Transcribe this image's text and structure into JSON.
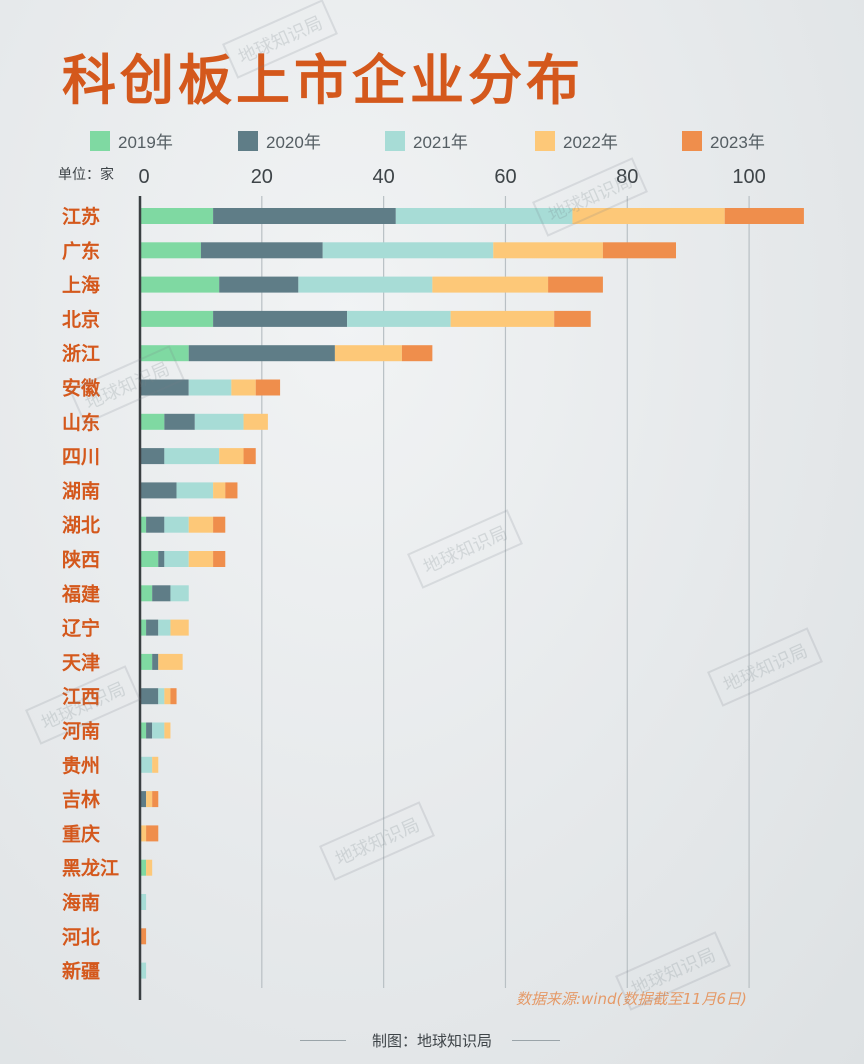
{
  "title": "科创板上市企业分布",
  "unit_label": "单位：家",
  "source": "数据来源:wind(数据截至11月6日)",
  "credit": "制图：地球知识局",
  "watermark": "地球知识局",
  "colors": {
    "2019年": "#7fd9a2",
    "2020年": "#5f7d87",
    "2021年": "#a7dcd6",
    "2022年": "#fdc878",
    "2023年": "#ef8e4c",
    "title": "#d4581c",
    "category_label": "#d4581c"
  },
  "chart_data": {
    "type": "bar",
    "orientation": "horizontal",
    "stacked": true,
    "xlim": [
      0,
      110
    ],
    "x_ticks": [
      0,
      20,
      40,
      60,
      80,
      100
    ],
    "grid": true,
    "legend_position": "top",
    "categories": [
      "江苏",
      "广东",
      "上海",
      "北京",
      "浙江",
      "安徽",
      "山东",
      "四川",
      "湖南",
      "湖北",
      "陕西",
      "福建",
      "辽宁",
      "天津",
      "江西",
      "河南",
      "贵州",
      "吉林",
      "重庆",
      "黑龙江",
      "海南",
      "河北",
      "新疆"
    ],
    "series": [
      {
        "name": "2019年",
        "values": [
          12,
          10,
          13,
          12,
          8,
          0,
          4,
          0,
          0,
          1,
          3,
          2,
          1,
          2,
          0,
          1,
          0,
          0,
          0,
          1,
          0,
          0,
          0
        ]
      },
      {
        "name": "2020年",
        "values": [
          30,
          20,
          13,
          22,
          24,
          8,
          5,
          4,
          6,
          3,
          1,
          3,
          2,
          1,
          3,
          1,
          0,
          1,
          0,
          0,
          0,
          0,
          0
        ]
      },
      {
        "name": "2021年",
        "values": [
          29,
          28,
          22,
          17,
          0,
          7,
          8,
          9,
          6,
          4,
          4,
          3,
          2,
          0,
          1,
          2,
          2,
          0,
          0,
          0,
          1,
          0,
          1
        ]
      },
      {
        "name": "2022年",
        "values": [
          25,
          18,
          19,
          17,
          11,
          4,
          4,
          4,
          2,
          4,
          4,
          0,
          3,
          4,
          1,
          1,
          1,
          1,
          1,
          1,
          0,
          0,
          0
        ]
      },
      {
        "name": "2023年",
        "values": [
          13,
          12,
          9,
          6,
          5,
          4,
          0,
          2,
          2,
          2,
          2,
          0,
          0,
          0,
          1,
          0,
          0,
          1,
          2,
          0,
          0,
          1,
          0
        ]
      }
    ]
  }
}
